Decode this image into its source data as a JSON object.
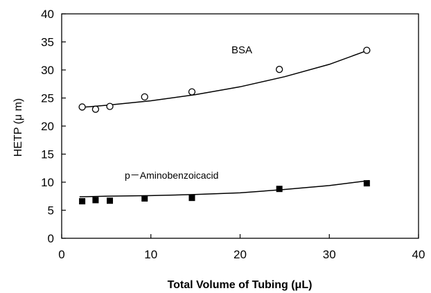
{
  "chart_data": {
    "type": "scatter",
    "xlabel": "Total Volume of Tubing (μL)",
    "ylabel": "HETP (μ m)",
    "xlim": [
      0,
      40
    ],
    "ylim": [
      0,
      40
    ],
    "xticks": [
      0,
      10,
      20,
      30,
      40
    ],
    "yticks": [
      0,
      5,
      10,
      15,
      20,
      25,
      30,
      35,
      40
    ],
    "grid": false,
    "legend": "none",
    "series": [
      {
        "name": "BSA",
        "marker": "open-circle",
        "points": [
          {
            "x": 2.3,
            "y": 23.4
          },
          {
            "x": 3.8,
            "y": 23.0
          },
          {
            "x": 5.4,
            "y": 23.5
          },
          {
            "x": 9.3,
            "y": 25.2
          },
          {
            "x": 14.6,
            "y": 26.1
          },
          {
            "x": 24.4,
            "y": 30.1
          },
          {
            "x": 34.2,
            "y": 33.5
          }
        ],
        "trend": [
          {
            "x": 2.0,
            "y": 23.3
          },
          {
            "x": 5.0,
            "y": 23.7
          },
          {
            "x": 10.0,
            "y": 24.5
          },
          {
            "x": 15.0,
            "y": 25.6
          },
          {
            "x": 20.0,
            "y": 27.0
          },
          {
            "x": 25.0,
            "y": 28.8
          },
          {
            "x": 30.0,
            "y": 31.0
          },
          {
            "x": 34.5,
            "y": 33.6
          }
        ]
      },
      {
        "name": "p－Aminobenzoicacid",
        "marker": "filled-square",
        "points": [
          {
            "x": 2.3,
            "y": 6.6
          },
          {
            "x": 3.8,
            "y": 6.8
          },
          {
            "x": 5.4,
            "y": 6.7
          },
          {
            "x": 9.3,
            "y": 7.1
          },
          {
            "x": 14.6,
            "y": 7.2
          },
          {
            "x": 24.4,
            "y": 8.8
          },
          {
            "x": 34.2,
            "y": 9.8
          }
        ],
        "trend": [
          {
            "x": 2.0,
            "y": 7.4
          },
          {
            "x": 5.0,
            "y": 7.5
          },
          {
            "x": 10.0,
            "y": 7.6
          },
          {
            "x": 15.0,
            "y": 7.8
          },
          {
            "x": 20.0,
            "y": 8.1
          },
          {
            "x": 25.0,
            "y": 8.7
          },
          {
            "x": 30.0,
            "y": 9.4
          },
          {
            "x": 34.5,
            "y": 10.3
          }
        ]
      }
    ]
  }
}
